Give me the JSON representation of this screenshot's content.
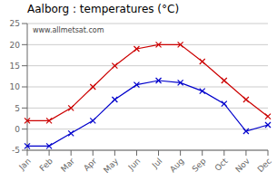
{
  "chart_data": {
    "type": "line",
    "title": "Aalborg : temperatures (°C)",
    "categories": [
      "Jan",
      "Feb",
      "Mar",
      "Apr",
      "May",
      "Jun",
      "Jul",
      "Aug",
      "Sep",
      "Oct",
      "Nov",
      "Dec"
    ],
    "series": [
      {
        "color": "#cc0000",
        "marker": "x",
        "values": [
          2,
          2,
          5,
          10,
          15,
          19,
          20,
          20,
          16,
          11.5,
          7,
          3
        ]
      },
      {
        "color": "#0000cc",
        "marker": "x",
        "values": [
          -4,
          -4,
          -1,
          2,
          7,
          10.5,
          11.5,
          11,
          9,
          6,
          -0.5,
          1
        ]
      }
    ],
    "ylim": [
      -5,
      25
    ],
    "yticks": [
      -5,
      0,
      5,
      10,
      15,
      20,
      25
    ],
    "grid": "y",
    "annotations": [
      "www.allmetsat.com"
    ]
  }
}
